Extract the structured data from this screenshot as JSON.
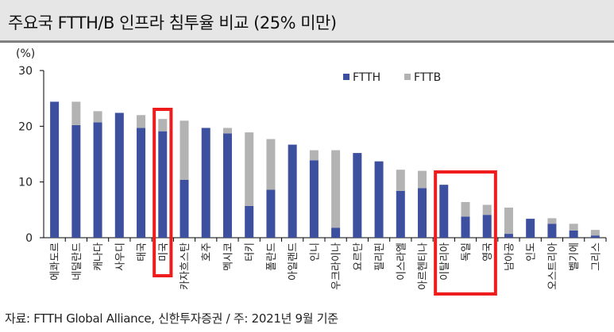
{
  "title": "주요국 FTTH/B 인프라 침투율 비교 (25% 미만)",
  "source": "자료: FTTH Global Alliance, 신한투자증권 / 주: 2021년 9월 기준",
  "colors": {
    "ftth": "#3d4f9f",
    "fttb": "#b3b3b3",
    "highlight": "#ee1c1c",
    "axis": "#000000"
  },
  "chart_data": {
    "type": "bar",
    "stacked": true,
    "unit_label": "(%)",
    "ylim": [
      0,
      30
    ],
    "yticks": [
      0,
      10,
      20,
      30
    ],
    "legend_position": "top-right",
    "categories": [
      "에콰도르",
      "네덜란드",
      "캐나다",
      "사우디",
      "태국",
      "미국",
      "카자흐스탄",
      "호주",
      "멕시코",
      "터키",
      "폴란드",
      "아일랜드",
      "인니",
      "우크라이나",
      "요르단",
      "필리핀",
      "이스라엘",
      "아르헨티나",
      "이탈리아",
      "독일",
      "영국",
      "남아공",
      "인도",
      "오스트리아",
      "벨기에",
      "그리스"
    ],
    "series": [
      {
        "name": "FTTH",
        "values": [
          24.4,
          20.2,
          20.7,
          22.4,
          19.7,
          19.1,
          10.4,
          19.7,
          18.7,
          5.7,
          8.6,
          16.7,
          13.9,
          1.8,
          15.2,
          13.7,
          8.4,
          8.9,
          9.5,
          3.8,
          4.1,
          0.7,
          3.4,
          2.5,
          1.3,
          0.4
        ]
      },
      {
        "name": "FTTB",
        "values": [
          0,
          4.2,
          2.0,
          0,
          2.3,
          2.2,
          10.6,
          0,
          1.0,
          13.2,
          9.1,
          0,
          1.8,
          13.9,
          0,
          0,
          3.8,
          3.1,
          0,
          2.6,
          1.8,
          4.7,
          0,
          1.0,
          1.2,
          1.0
        ]
      }
    ],
    "highlight_groups": [
      [
        "미국"
      ],
      [
        "이탈리아",
        "독일",
        "영국"
      ]
    ]
  }
}
